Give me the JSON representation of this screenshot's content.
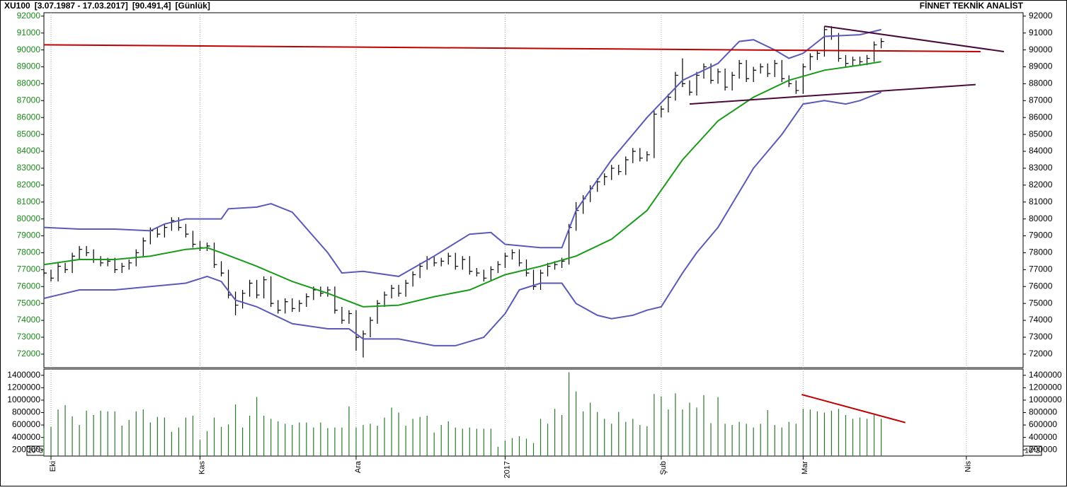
{
  "chart_data": [
    {
      "type": "ohlc",
      "title_parts": [
        "XU100",
        "[3.07.1987 - 17.03.2017]",
        "[90.491,4]",
        "[Günlük]"
      ],
      "source": "FİNNET TEKNİK ANALİST",
      "color": "#000000",
      "axis_label_color": "#1a8a1a",
      "grid": true,
      "xlim": [
        0,
        138
      ],
      "xticks": [
        {
          "value": 1,
          "label": "Eki"
        },
        {
          "value": 22,
          "label": "Kas"
        },
        {
          "value": 44,
          "label": "Ara"
        },
        {
          "value": 65,
          "label": "2017"
        },
        {
          "value": 87,
          "label": "Şub"
        },
        {
          "value": 107,
          "label": "Mar"
        },
        {
          "value": 130,
          "label": "Nis"
        }
      ],
      "ylim": [
        71200,
        92200
      ],
      "yticks": [
        72000,
        73000,
        74000,
        75000,
        76000,
        77000,
        78000,
        79000,
        80000,
        81000,
        82000,
        83000,
        84000,
        85000,
        86000,
        87000,
        88000,
        89000,
        90000,
        91000,
        92000
      ],
      "high": [
        77000,
        77000,
        77400,
        77400,
        78000,
        78400,
        78400,
        78200,
        77800,
        77700,
        77700,
        77400,
        77600,
        78200,
        78900,
        79500,
        79500,
        79700,
        80100,
        80100,
        79700,
        79300,
        78700,
        78600,
        78600,
        77500,
        77000,
        75700,
        75800,
        76400,
        76400,
        76600,
        76600,
        75200,
        75300,
        75300,
        75200,
        75600,
        76000,
        76000,
        76000,
        76000,
        74800,
        74600,
        74600,
        73400,
        74200,
        75200,
        75700,
        76100,
        76100,
        76400,
        76900,
        77400,
        77800,
        77800,
        77700,
        78000,
        78000,
        77800,
        77800,
        77100,
        77000,
        77200,
        77500,
        78000,
        78200,
        78200,
        77600,
        77000,
        77000,
        77400,
        77500,
        77700,
        79700,
        81000,
        81400,
        82000,
        82400,
        82700,
        83200,
        83200,
        83700,
        84200,
        84200,
        84000,
        86400,
        86700,
        87400,
        88700,
        89500,
        88200,
        88700,
        89200,
        89200,
        88900,
        88900,
        88700,
        89400,
        89400,
        89000,
        89200,
        89200,
        89400,
        89400,
        88500,
        88200,
        89200,
        89800,
        90000,
        91400,
        91400,
        91000,
        89700,
        89600,
        89600,
        89700,
        90500,
        90700
      ],
      "low": [
        76600,
        76300,
        76300,
        76800,
        76800,
        77600,
        77800,
        77400,
        77200,
        77200,
        76800,
        76800,
        77000,
        77200,
        77800,
        78500,
        78900,
        78900,
        79300,
        79300,
        78900,
        78300,
        78100,
        78100,
        77100,
        76600,
        75300,
        74300,
        74700,
        75400,
        75300,
        75300,
        74800,
        74400,
        74400,
        74500,
        74500,
        74800,
        75200,
        75400,
        75400,
        74400,
        73800,
        73800,
        72200,
        71800,
        73000,
        73800,
        74800,
        75300,
        75400,
        75400,
        76000,
        76500,
        77000,
        77200,
        77200,
        77300,
        77000,
        77000,
        76700,
        76600,
        76300,
        76300,
        76800,
        77100,
        77600,
        77200,
        76600,
        75800,
        75800,
        76600,
        77000,
        77100,
        77300,
        79300,
        80300,
        81000,
        81600,
        82000,
        82300,
        82600,
        82600,
        83300,
        83400,
        83400,
        83600,
        86000,
        86300,
        87000,
        87800,
        87300,
        87300,
        88300,
        88000,
        88000,
        87600,
        87600,
        88300,
        88100,
        88100,
        88600,
        88400,
        88400,
        88100,
        87800,
        87400,
        87400,
        88800,
        89400,
        89600,
        90600,
        89300,
        89000,
        89000,
        89100,
        89100,
        89300,
        90100
      ],
      "close": [
        76800,
        76500,
        77200,
        77000,
        77800,
        78200,
        78000,
        77600,
        77400,
        77500,
        77000,
        77200,
        77400,
        78000,
        78700,
        79300,
        79100,
        79500,
        79900,
        79500,
        79100,
        78500,
        78300,
        78400,
        77300,
        76800,
        75500,
        74900,
        75600,
        76200,
        75500,
        76400,
        75000,
        74600,
        75100,
        74700,
        75000,
        75400,
        75800,
        75600,
        75800,
        74600,
        74000,
        74400,
        73000,
        73200,
        74000,
        75000,
        75500,
        75900,
        75600,
        76200,
        76700,
        77200,
        77600,
        77400,
        77500,
        77800,
        77200,
        77600,
        76900,
        76800,
        76500,
        77000,
        77300,
        77800,
        78000,
        77400,
        76800,
        76000,
        76800,
        77200,
        77300,
        77500,
        79500,
        80500,
        81200,
        81800,
        82200,
        82500,
        83000,
        82800,
        83500,
        84000,
        83600,
        83800,
        86200,
        86500,
        87200,
        88500,
        88000,
        87500,
        88500,
        89000,
        88200,
        88700,
        87800,
        88500,
        89200,
        88300,
        88800,
        89000,
        88600,
        89200,
        88300,
        88000,
        87600,
        89000,
        89600,
        89800,
        91200,
        90800,
        89500,
        89200,
        89400,
        89300,
        89500,
        90300,
        90500
      ],
      "lines": [
        {
          "color": "#1a9a1a",
          "x": [
            0,
            5,
            10,
            15,
            20,
            23,
            25,
            30,
            35,
            40,
            45,
            50,
            55,
            60,
            65,
            70,
            75,
            80,
            85,
            90,
            95,
            100,
            105,
            110,
            115,
            118
          ],
          "values": [
            77300,
            77600,
            77600,
            77800,
            78200,
            78300,
            78000,
            77200,
            76300,
            75600,
            74800,
            74900,
            75400,
            75800,
            76700,
            77200,
            77800,
            78800,
            80500,
            83500,
            85800,
            87200,
            88200,
            88800,
            89100,
            89300
          ]
        },
        {
          "color": "#5a5ab8",
          "x": [
            0,
            5,
            10,
            15,
            17,
            20,
            25,
            26,
            30,
            32,
            35,
            40,
            42,
            45,
            50,
            55,
            60,
            63,
            65,
            70,
            73,
            75,
            80,
            85,
            90,
            95,
            98,
            100,
            103,
            105,
            107,
            110,
            115,
            118
          ],
          "values": [
            79500,
            79400,
            79400,
            79300,
            79700,
            80000,
            80000,
            80600,
            80700,
            80900,
            80400,
            78000,
            76800,
            76900,
            76600,
            77800,
            79100,
            79200,
            78500,
            78300,
            78300,
            80500,
            83500,
            86000,
            88200,
            89200,
            90500,
            90600,
            90000,
            89500,
            89800,
            90800,
            90900,
            91200
          ]
        },
        {
          "color": "#5a5ab8",
          "x": [
            0,
            2,
            5,
            10,
            15,
            20,
            23,
            25,
            27,
            30,
            35,
            40,
            43,
            45,
            50,
            55,
            58,
            62,
            65,
            67,
            70,
            73,
            75,
            78,
            80,
            83,
            85,
            87,
            90,
            92,
            95,
            100,
            104,
            107,
            110,
            113,
            115,
            118
          ],
          "values": [
            75300,
            75500,
            75800,
            75800,
            76000,
            76200,
            76600,
            76300,
            75200,
            74800,
            73800,
            73500,
            73500,
            72900,
            72900,
            72500,
            72500,
            73000,
            74400,
            75800,
            76200,
            76200,
            75000,
            74300,
            74100,
            74300,
            74600,
            74800,
            76800,
            78000,
            79500,
            83000,
            85000,
            86800,
            87000,
            86800,
            87000,
            87500
          ]
        }
      ],
      "trendlines": [
        {
          "color": "#c00000",
          "x": [
            0,
            132
          ],
          "values": [
            90300,
            89900
          ]
        },
        {
          "color": "#4b0a3b",
          "x": [
            110,
            135.3
          ],
          "values": [
            91400,
            89900
          ]
        },
        {
          "color": "#4b0a3b",
          "x": [
            91,
            131.3
          ],
          "values": [
            86800,
            87950
          ]
        }
      ]
    },
    {
      "type": "bar",
      "color": "#2a7a2a",
      "unit_label": "10^3",
      "xlim": [
        0,
        138
      ],
      "ylim": [
        100000,
        1500000
      ],
      "yticks": [
        200000,
        400000,
        600000,
        800000,
        1000000,
        1200000,
        1400000
      ],
      "values": [
        550000,
        570000,
        850000,
        920000,
        740000,
        600000,
        830000,
        760000,
        830000,
        820000,
        820000,
        590000,
        680000,
        820000,
        850000,
        640000,
        730000,
        720000,
        490000,
        560000,
        720000,
        750000,
        360000,
        500000,
        720000,
        570000,
        610000,
        930000,
        560000,
        750000,
        1050000,
        750000,
        700000,
        660000,
        620000,
        600000,
        640000,
        640000,
        560000,
        640000,
        550000,
        560000,
        560000,
        900000,
        560000,
        600000,
        620000,
        590000,
        720000,
        880000,
        800000,
        590000,
        700000,
        730000,
        750000,
        480000,
        600000,
        660000,
        560000,
        540000,
        560000,
        540000,
        540000,
        540000,
        250000,
        350000,
        390000,
        420000,
        380000,
        310000,
        700000,
        620000,
        860000,
        760000,
        1450000,
        1140000,
        820000,
        960000,
        810000,
        700000,
        620000,
        810000,
        650000,
        700000,
        600000,
        580000,
        1100000,
        1060000,
        850000,
        1110000,
        850000,
        960000,
        880000,
        1080000,
        630000,
        1050000,
        620000,
        600000,
        650000,
        620000,
        560000,
        620000,
        840000,
        600000,
        560000,
        650000,
        620000,
        860000,
        850000,
        820000,
        800000,
        830000,
        860000,
        760000,
        700000,
        720000,
        700000,
        760000,
        700000
      ],
      "trendlines": [
        {
          "color": "#c00000",
          "x": [
            106.8,
            121.4
          ],
          "values": [
            1090000,
            640000
          ]
        }
      ]
    }
  ]
}
